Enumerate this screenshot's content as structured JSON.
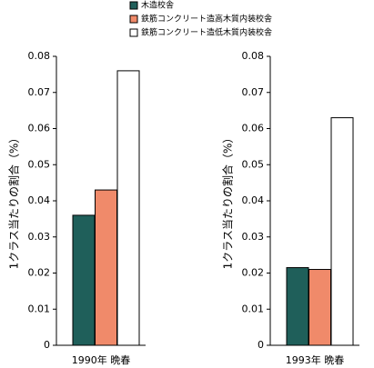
{
  "chart_data": [
    {
      "type": "bar",
      "x_label": "1990年 晩春",
      "y_label": "1クラス当たりの割合（%）",
      "ylim": [
        0,
        0.08
      ],
      "yticks": [
        0,
        0.01,
        0.02,
        0.03,
        0.04,
        0.05,
        0.06,
        0.07,
        0.08
      ],
      "series": [
        {
          "name": "木造校舎",
          "color": "#1f5f5a",
          "values": [
            0.036
          ]
        },
        {
          "name": "鉄筋コンクリート造高木質内装校舎",
          "color": "#f08a6a",
          "values": [
            0.043
          ]
        },
        {
          "name": "鉄筋コンクリート造低木質内装校舎",
          "color": "#ffffff",
          "values": [
            0.076
          ]
        }
      ]
    },
    {
      "type": "bar",
      "x_label": "1993年 晩春",
      "y_label": "1クラス当たりの割合（%）",
      "ylim": [
        0,
        0.08
      ],
      "yticks": [
        0,
        0.01,
        0.02,
        0.03,
        0.04,
        0.05,
        0.06,
        0.07,
        0.08
      ],
      "series": [
        {
          "color": "#1f5f5a",
          "values": [
            0.0215
          ]
        },
        {
          "color": "#f08a6a",
          "values": [
            0.021
          ]
        },
        {
          "color": "#ffffff",
          "values": [
            0.063
          ]
        }
      ]
    }
  ]
}
